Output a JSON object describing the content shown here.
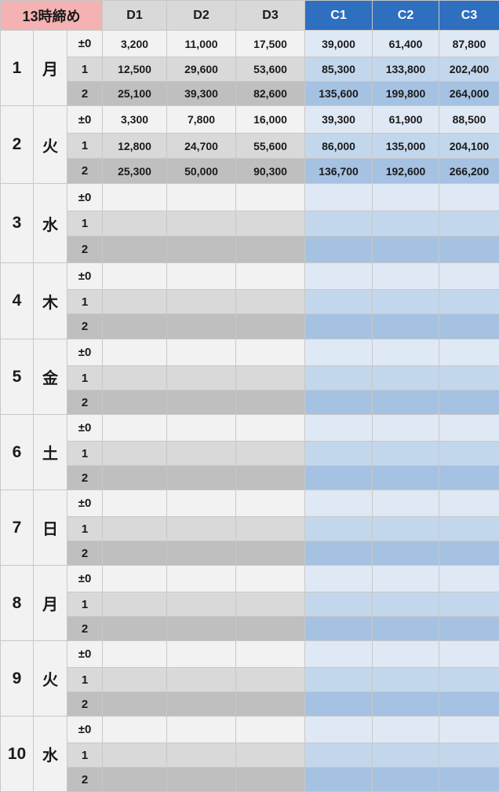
{
  "header": {
    "title": "13時締め",
    "columns": [
      "D1",
      "D2",
      "D3",
      "C1",
      "C2",
      "C3"
    ]
  },
  "sub_labels": [
    "±0",
    "1",
    "2"
  ],
  "days": [
    {
      "day": "1",
      "weekday": "月",
      "rows": [
        [
          "3,200",
          "11,000",
          "17,500",
          "39,000",
          "61,400",
          "87,800"
        ],
        [
          "12,500",
          "29,600",
          "53,600",
          "85,300",
          "133,800",
          "202,400"
        ],
        [
          "25,100",
          "39,300",
          "82,600",
          "135,600",
          "199,800",
          "264,000"
        ]
      ]
    },
    {
      "day": "2",
      "weekday": "火",
      "rows": [
        [
          "3,300",
          "7,800",
          "16,000",
          "39,300",
          "61,900",
          "88,500"
        ],
        [
          "12,800",
          "24,700",
          "55,600",
          "86,000",
          "135,000",
          "204,100"
        ],
        [
          "25,300",
          "50,000",
          "90,300",
          "136,700",
          "192,600",
          "266,200"
        ]
      ]
    },
    {
      "day": "3",
      "weekday": "水",
      "rows": [
        [
          "",
          "",
          "",
          "",
          "",
          ""
        ],
        [
          "",
          "",
          "",
          "",
          "",
          ""
        ],
        [
          "",
          "",
          "",
          "",
          "",
          ""
        ]
      ]
    },
    {
      "day": "4",
      "weekday": "木",
      "rows": [
        [
          "",
          "",
          "",
          "",
          "",
          ""
        ],
        [
          "",
          "",
          "",
          "",
          "",
          ""
        ],
        [
          "",
          "",
          "",
          "",
          "",
          ""
        ]
      ]
    },
    {
      "day": "5",
      "weekday": "金",
      "rows": [
        [
          "",
          "",
          "",
          "",
          "",
          ""
        ],
        [
          "",
          "",
          "",
          "",
          "",
          ""
        ],
        [
          "",
          "",
          "",
          "",
          "",
          ""
        ]
      ]
    },
    {
      "day": "6",
      "weekday": "土",
      "rows": [
        [
          "",
          "",
          "",
          "",
          "",
          ""
        ],
        [
          "",
          "",
          "",
          "",
          "",
          ""
        ],
        [
          "",
          "",
          "",
          "",
          "",
          ""
        ]
      ]
    },
    {
      "day": "7",
      "weekday": "日",
      "rows": [
        [
          "",
          "",
          "",
          "",
          "",
          ""
        ],
        [
          "",
          "",
          "",
          "",
          "",
          ""
        ],
        [
          "",
          "",
          "",
          "",
          "",
          ""
        ]
      ]
    },
    {
      "day": "8",
      "weekday": "月",
      "rows": [
        [
          "",
          "",
          "",
          "",
          "",
          ""
        ],
        [
          "",
          "",
          "",
          "",
          "",
          ""
        ],
        [
          "",
          "",
          "",
          "",
          "",
          ""
        ]
      ]
    },
    {
      "day": "9",
      "weekday": "火",
      "rows": [
        [
          "",
          "",
          "",
          "",
          "",
          ""
        ],
        [
          "",
          "",
          "",
          "",
          "",
          ""
        ],
        [
          "",
          "",
          "",
          "",
          "",
          ""
        ]
      ]
    },
    {
      "day": "10",
      "weekday": "水",
      "rows": [
        [
          "",
          "",
          "",
          "",
          "",
          ""
        ],
        [
          "",
          "",
          "",
          "",
          "",
          ""
        ],
        [
          "",
          "",
          "",
          "",
          "",
          ""
        ]
      ]
    }
  ]
}
